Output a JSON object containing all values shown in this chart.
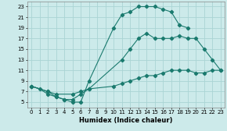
{
  "xlabel": "Humidex (Indice chaleur)",
  "bg_color": "#cceaea",
  "grid_color": "#aad4d4",
  "line_color": "#1a7a6e",
  "xlim": [
    -0.5,
    23.5
  ],
  "ylim": [
    4.0,
    24.0
  ],
  "xticks": [
    0,
    1,
    2,
    3,
    4,
    5,
    6,
    7,
    8,
    9,
    10,
    11,
    12,
    13,
    14,
    15,
    16,
    17,
    18,
    19,
    20,
    21,
    22,
    23
  ],
  "yticks": [
    5,
    7,
    9,
    11,
    13,
    15,
    17,
    19,
    21,
    23
  ],
  "curve1_x": [
    0,
    1,
    2,
    3,
    4,
    5,
    6,
    7,
    10,
    11,
    12,
    13,
    14,
    15,
    16,
    17,
    18,
    19
  ],
  "curve1_y": [
    8,
    7.5,
    6.5,
    6,
    5.5,
    5,
    5,
    9,
    19,
    21.5,
    22,
    23,
    23,
    23,
    22.5,
    22,
    19.5,
    19
  ],
  "curve2_x": [
    0,
    2,
    3,
    4,
    5,
    6,
    7,
    11,
    12,
    13,
    14,
    15,
    16,
    17,
    18,
    19,
    20,
    21,
    22,
    23
  ],
  "curve2_y": [
    8,
    7,
    6,
    5.5,
    5.5,
    6.5,
    7.5,
    13,
    15,
    17,
    18,
    17,
    17,
    17,
    17.5,
    17,
    17,
    15,
    13,
    11
  ],
  "curve3_x": [
    0,
    2,
    3,
    5,
    6,
    7,
    10,
    11,
    12,
    13,
    14,
    15,
    16,
    17,
    18,
    19,
    20,
    21,
    22,
    23
  ],
  "curve3_y": [
    8,
    7,
    6.5,
    6.5,
    7,
    7.5,
    8,
    8.5,
    9,
    9.5,
    10,
    10,
    10.5,
    11,
    11,
    11,
    10.5,
    10.5,
    11,
    11
  ]
}
